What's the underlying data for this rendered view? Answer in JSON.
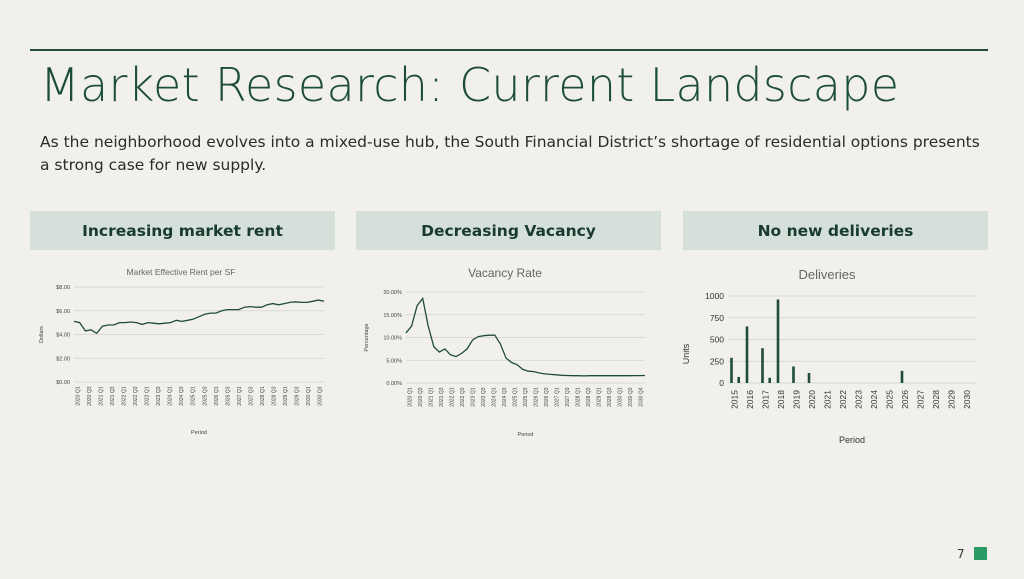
{
  "slide": {
    "title": "Market Research: Current Landscape",
    "subtitle": "As the neighborhood evolves into a mixed-use hub, the South Financial District’s shortage of residential options presents a strong case for new supply.",
    "page_number": "7",
    "accent_color": "#2e9a63",
    "title_color": "#1b4d3a",
    "panel_color": "#d5e0da"
  },
  "panels": [
    {
      "heading": "Increasing market rent"
    },
    {
      "heading": "Decreasing Vacancy"
    },
    {
      "heading": "No new deliveries"
    }
  ],
  "chart_data": [
    {
      "type": "line",
      "title": "Market Effective Rent per SF",
      "xlabel": "Period",
      "ylabel": "Dollars",
      "ylim": [
        0,
        8
      ],
      "yticks": [
        0,
        2,
        4,
        6,
        8
      ],
      "ytick_labels": [
        "$0.00",
        "$2.00",
        "$4.00",
        "$6.00",
        "$8.00"
      ],
      "xtick_labels": [
        "2020 Q1",
        "2020 Q3",
        "2021 Q1",
        "2021 Q3",
        "2022 Q1",
        "2022 Q3",
        "2023 Q1",
        "2023 Q3",
        "2024 Q1",
        "2024 Q3",
        "2025 Q1",
        "2025 Q3",
        "2026 Q1",
        "2026 Q3",
        "2027 Q1",
        "2027 Q3",
        "2028 Q1",
        "2028 Q3",
        "2029 Q1",
        "2029 Q3",
        "2030 Q1",
        "2030 Q3"
      ],
      "grid": true,
      "series": [
        {
          "values": [
            5.1,
            5.0,
            4.3,
            4.4,
            4.1,
            4.7,
            4.8,
            4.8,
            5.0,
            5.0,
            5.05,
            5.0,
            4.85,
            5.0,
            4.95,
            4.9,
            4.95,
            5.0,
            5.2,
            5.1,
            5.2,
            5.3,
            5.5,
            5.7,
            5.8,
            5.8,
            6.0,
            6.1,
            6.1,
            6.1,
            6.3,
            6.35,
            6.3,
            6.3,
            6.5,
            6.6,
            6.5,
            6.6,
            6.7,
            6.75,
            6.7,
            6.7,
            6.8,
            6.9,
            6.8
          ]
        }
      ]
    },
    {
      "type": "line",
      "title": "Vacancy Rate",
      "xlabel": "Period",
      "ylabel": "Percentage",
      "ylim": [
        0,
        20
      ],
      "yticks": [
        0,
        5,
        10,
        15,
        20
      ],
      "ytick_labels": [
        "0.00%",
        "5.00%",
        "10.00%",
        "15.00%",
        "20.00%"
      ],
      "xtick_labels": [
        "2020 Q1",
        "2020 Q3",
        "2021 Q1",
        "2021 Q3",
        "2022 Q1",
        "2022 Q3",
        "2023 Q1",
        "2023 Q3",
        "2024 Q1",
        "2024 Q3",
        "2025 Q1",
        "2025 Q3",
        "2026 Q1",
        "2026 Q3",
        "2027 Q1",
        "2027 Q3",
        "2028 Q1",
        "2028 Q3",
        "2029 Q1",
        "2029 Q3",
        "2030 Q1",
        "2030 Q3",
        "2030 Q4"
      ],
      "grid": true,
      "series": [
        {
          "values": [
            11.0,
            12.5,
            17.0,
            18.6,
            12.5,
            8.0,
            6.8,
            7.5,
            6.2,
            5.8,
            6.5,
            7.5,
            9.5,
            10.2,
            10.4,
            10.5,
            10.5,
            8.5,
            5.5,
            4.5,
            4.0,
            3.0,
            2.6,
            2.5,
            2.2,
            2.0,
            1.9,
            1.8,
            1.7,
            1.65,
            1.6,
            1.6,
            1.55,
            1.6,
            1.6,
            1.6,
            1.6,
            1.6,
            1.6,
            1.6,
            1.6,
            1.62,
            1.63,
            1.64
          ]
        }
      ]
    },
    {
      "type": "bar",
      "title": "Deliveries",
      "xlabel": "Period",
      "ylabel": "Units",
      "ylim": [
        0,
        1000
      ],
      "yticks": [
        0,
        250,
        500,
        750,
        1000
      ],
      "ytick_labels": [
        "0",
        "250",
        "500",
        "750",
        "1000"
      ],
      "categories": [
        "2015",
        "2016",
        "2017",
        "2018",
        "2019",
        "2020",
        "2021",
        "2022",
        "2023",
        "2024",
        "2025",
        "2026",
        "2027",
        "2028",
        "2029",
        "2030"
      ],
      "grid": true,
      "series": [
        {
          "values": [
            [
              290,
              70
            ],
            [
              650,
              0
            ],
            [
              400,
              60
            ],
            [
              960,
              0
            ],
            [
              190,
              0
            ],
            [
              115,
              0
            ],
            [
              0,
              0
            ],
            [
              0,
              0
            ],
            [
              0,
              0
            ],
            [
              0,
              0
            ],
            [
              0,
              0
            ],
            [
              140,
              0
            ],
            [
              0,
              0
            ],
            [
              0,
              0
            ],
            [
              0,
              0
            ],
            [
              0,
              0
            ]
          ]
        }
      ]
    }
  ]
}
